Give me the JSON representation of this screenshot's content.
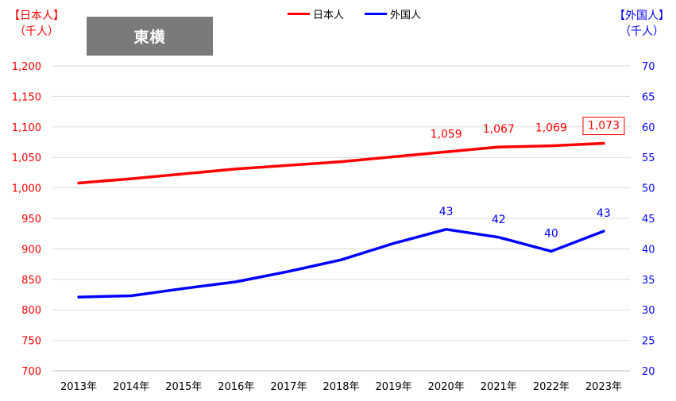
{
  "region_label": "東横",
  "left_axis_title": {
    "line1": "【日本人】",
    "line2": "（千人）"
  },
  "right_axis_title": {
    "line1": "【外国人】",
    "line2": "（千人）"
  },
  "colors": {
    "japanese": "#ff0000",
    "foreign": "#0000ff",
    "badge": "#7a7a7a"
  },
  "chart_data": {
    "type": "line",
    "categories": [
      "2013年",
      "2014年",
      "2015年",
      "2016年",
      "2017年",
      "2018年",
      "2019年",
      "2020年",
      "2021年",
      "2022年",
      "2023年"
    ],
    "series": [
      {
        "name": "日本人",
        "axis": "left",
        "color": "#ff0000",
        "values": [
          1008,
          1015,
          1023,
          1031,
          1037,
          1043,
          1051,
          1059,
          1067,
          1069,
          1073
        ],
        "labels": {
          "7": "1,059",
          "8": "1,067",
          "9": "1,069",
          "10": "1,073"
        },
        "boxed_label_index": 10
      },
      {
        "name": "外国人",
        "axis": "right",
        "color": "#0000ff",
        "values": [
          32.1,
          32.3,
          33.5,
          34.6,
          36.3,
          38.2,
          40.9,
          43.2,
          41.9,
          39.6,
          42.9
        ],
        "labels": {
          "7": "43",
          "8": "42",
          "9": "40",
          "10": "43"
        }
      }
    ],
    "left_axis": {
      "ylim": [
        700,
        1200
      ],
      "ticks": [
        "700",
        "750",
        "800",
        "850",
        "900",
        "950",
        "1,000",
        "1,050",
        "1,100",
        "1,150",
        "1,200"
      ]
    },
    "right_axis": {
      "ylim": [
        20,
        70
      ],
      "ticks": [
        "20",
        "25",
        "30",
        "35",
        "40",
        "45",
        "50",
        "55",
        "60",
        "65",
        "70"
      ]
    },
    "grid": true,
    "legend_position": "top-center"
  }
}
